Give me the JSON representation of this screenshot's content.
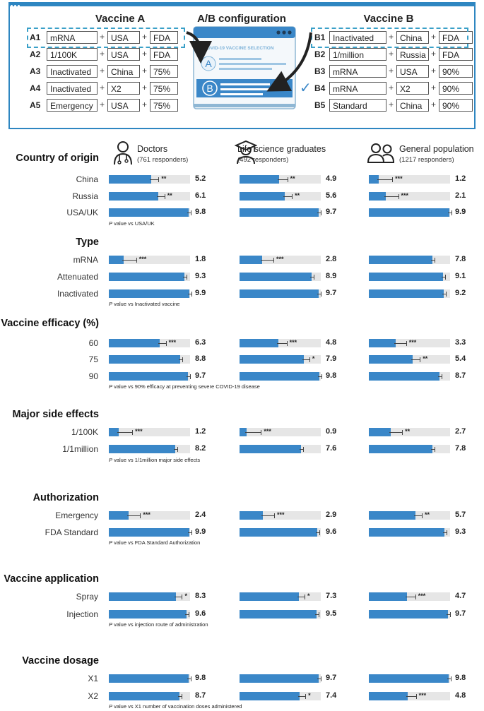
{
  "config": {
    "title": "A/B configuration",
    "vaccine_a": {
      "title": "Vaccine A",
      "rows": [
        {
          "label": "A1",
          "items": [
            "mRNA",
            "USA",
            "FDA"
          ]
        },
        {
          "label": "A2",
          "items": [
            "1/100K",
            "USA",
            "FDA"
          ]
        },
        {
          "label": "A3",
          "items": [
            "Inactivated",
            "China",
            "75%"
          ]
        },
        {
          "label": "A4",
          "items": [
            "Inactivated",
            "X2",
            "75%"
          ]
        },
        {
          "label": "A5",
          "items": [
            "Emergency",
            "USA",
            "75%"
          ]
        }
      ]
    },
    "vaccine_b": {
      "title": "Vaccine B",
      "rows": [
        {
          "label": "B1",
          "items": [
            "Inactivated",
            "China",
            "FDA"
          ]
        },
        {
          "label": "B2",
          "items": [
            "1/million",
            "Russia",
            "FDA"
          ]
        },
        {
          "label": "B3",
          "items": [
            "mRNA",
            "USA",
            "90%"
          ]
        },
        {
          "label": "B4",
          "items": [
            "mRNA",
            "X2",
            "90%"
          ]
        },
        {
          "label": "B5",
          "items": [
            "Standard",
            "China",
            "90%"
          ]
        }
      ]
    },
    "plus": "+",
    "screen": {
      "title": "COVID-19 VACCINE SELECTION",
      "option_a": "A",
      "option_b": "B",
      "check": "✓"
    },
    "colors": {
      "accent": "#2e86c1",
      "bar": "#3a87c8",
      "track": "#e6e6e6"
    }
  },
  "chart_data": {
    "type": "bar",
    "orientation": "horizontal",
    "xlim": [
      0,
      10
    ],
    "groups": [
      {
        "name": "Doctors",
        "responders": "(761 responders)",
        "icon": "doctor-icon"
      },
      {
        "name": "Life science graduates",
        "responders": "(492 responders)",
        "icon": "graduate-icon"
      },
      {
        "name": "General population",
        "responders": "(1217 responders)",
        "icon": "people-icon"
      }
    ],
    "categories": [
      {
        "title": "Country of origin",
        "note_p": "P",
        "note": " value vs USA/UK",
        "levels": [
          {
            "label": "China",
            "values": [
              5.2,
              4.9,
              1.2
            ],
            "sig": [
              "**",
              "**",
              "***"
            ]
          },
          {
            "label": "Russia",
            "values": [
              6.1,
              5.6,
              2.1
            ],
            "sig": [
              "**",
              "**",
              "***"
            ]
          },
          {
            "label": "USA/UK",
            "values": [
              9.8,
              9.7,
              9.9
            ],
            "sig": [
              "",
              "",
              ""
            ]
          }
        ]
      },
      {
        "title": "Type",
        "note_p": "P",
        "note": " value vs Inactivated vaccine",
        "levels": [
          {
            "label": "mRNA",
            "values": [
              1.8,
              2.8,
              7.8
            ],
            "sig": [
              "***",
              "***",
              ""
            ]
          },
          {
            "label": "Attenuated",
            "values": [
              9.3,
              8.9,
              9.1
            ],
            "sig": [
              "",
              "",
              ""
            ]
          },
          {
            "label": "Inactivated",
            "values": [
              9.9,
              9.7,
              9.2
            ],
            "sig": [
              "",
              "",
              ""
            ]
          }
        ]
      },
      {
        "title": "Vaccine efficacy (%)",
        "note_p": "P",
        "note": " value vs 90% efficacy at preventing severe COVID-19 disease",
        "levels": [
          {
            "label": "60",
            "values": [
              6.3,
              4.8,
              3.3
            ],
            "sig": [
              "***",
              "***",
              "***"
            ]
          },
          {
            "label": "75",
            "values": [
              8.8,
              7.9,
              5.4
            ],
            "sig": [
              "",
              "*",
              "**"
            ]
          },
          {
            "label": "90",
            "values": [
              9.7,
              9.8,
              8.7
            ],
            "sig": [
              "",
              "",
              ""
            ]
          }
        ]
      },
      {
        "title": "Major side effects",
        "note_p": "P",
        "note": " value vs 1/1million major side effects",
        "levels": [
          {
            "label": "1/100K",
            "values": [
              1.2,
              0.9,
              2.7
            ],
            "sig": [
              "***",
              "***",
              "**"
            ]
          },
          {
            "label": "1/1million",
            "values": [
              8.2,
              7.6,
              7.8
            ],
            "sig": [
              "",
              "",
              ""
            ]
          }
        ]
      },
      {
        "title": "Authorization",
        "note_p": "P",
        "note": " value vs FDA Standard Authorization",
        "levels": [
          {
            "label": "Emergency",
            "values": [
              2.4,
              2.9,
              5.7
            ],
            "sig": [
              "***",
              "***",
              "**"
            ]
          },
          {
            "label": "FDA Standard",
            "values": [
              9.9,
              9.6,
              9.3
            ],
            "sig": [
              "",
              "",
              ""
            ]
          }
        ]
      },
      {
        "title": "Vaccine application",
        "note_p": "P",
        "note": " value vs injection route of administration",
        "levels": [
          {
            "label": "Spray",
            "values": [
              8.3,
              7.3,
              4.7
            ],
            "sig": [
              "*",
              "*",
              "***"
            ]
          },
          {
            "label": "Injection",
            "values": [
              9.6,
              9.5,
              9.7
            ],
            "sig": [
              "",
              "",
              ""
            ]
          }
        ]
      },
      {
        "title": "Vaccine dosage",
        "note_p": "P",
        "note": " value vs X1 number of vaccination doses administered",
        "levels": [
          {
            "label": "X1",
            "values": [
              9.8,
              9.7,
              9.8
            ],
            "sig": [
              "",
              "",
              ""
            ]
          },
          {
            "label": "X2",
            "values": [
              8.7,
              7.4,
              4.8
            ],
            "sig": [
              "",
              "*",
              "***"
            ]
          }
        ]
      }
    ]
  }
}
